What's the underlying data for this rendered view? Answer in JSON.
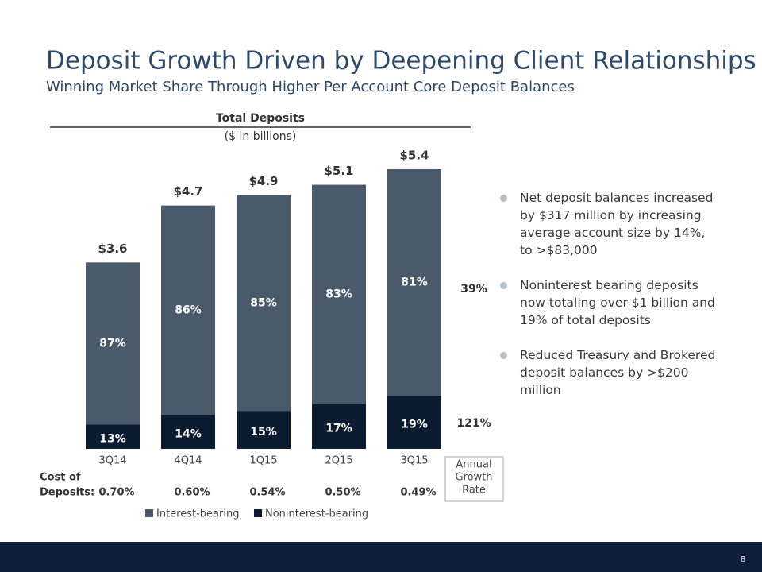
{
  "slide": {
    "title": "Deposit Growth Driven by Deepening Client Relationships",
    "subtitle": "Winning Market Share Through Higher Per Account Core Deposit Balances",
    "bullets": [
      "Net deposit balances increased by $317 million by increasing average account size by 14%, to >$83,000",
      "Noninterest bearing deposits now totaling over $1 billion and 19% of total deposits",
      "Reduced Treasury and Brokered deposit balances by >$200 million"
    ],
    "page_number": "8"
  },
  "chart_data": {
    "type": "stacked_bar",
    "title": "Total Deposits",
    "subtitle": "($ in billions)",
    "categories": [
      "3Q14",
      "4Q14",
      "1Q15",
      "2Q15",
      "3Q15"
    ],
    "totals": {
      "values": [
        3.6,
        4.7,
        4.9,
        5.1,
        5.4
      ],
      "value_labels": [
        "$3.6",
        "$4.7",
        "$4.9",
        "$5.1",
        "$5.4"
      ]
    },
    "series": [
      {
        "name": "Interest-bearing",
        "color": "#4b5a6a",
        "values": [
          87,
          86,
          85,
          83,
          81
        ],
        "value_labels": [
          "87%",
          "86%",
          "85%",
          "83%",
          "81%"
        ]
      },
      {
        "name": "Noninterest-bearing",
        "color": "#0c1c30",
        "values": [
          13,
          14,
          15,
          17,
          19
        ],
        "value_labels": [
          "13%",
          "14%",
          "15%",
          "17%",
          "19%"
        ]
      }
    ],
    "cost_of_deposits": {
      "label_lines": [
        "Cost of",
        "Deposits:"
      ],
      "values": [
        0.7,
        0.6,
        0.54,
        0.5,
        0.49
      ],
      "value_labels": [
        "0.70%",
        "0.60%",
        "0.54%",
        "0.50%",
        "0.49%"
      ]
    },
    "growth": {
      "label_lines": [
        "Annual",
        "Growth",
        "Rate"
      ],
      "values": [
        39,
        121
      ],
      "value_labels": [
        "39%",
        "121%"
      ]
    },
    "legend": "bottom"
  }
}
